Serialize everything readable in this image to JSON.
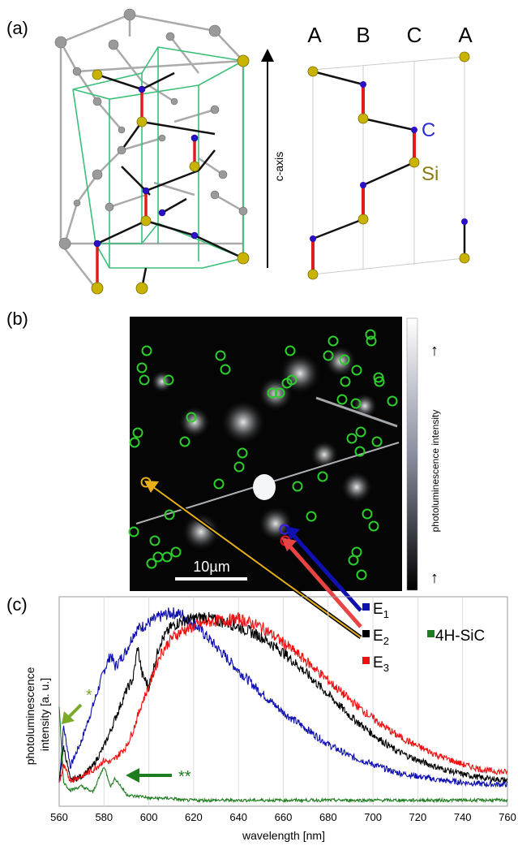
{
  "panels": {
    "a": {
      "label": "(a)",
      "axis_label": "c-axis",
      "stacking": [
        "A",
        "B",
        "C",
        "A"
      ],
      "atom_labels": {
        "carbon": "C",
        "silicon": "Si"
      }
    },
    "b": {
      "label": "(b)",
      "scale_bar": "10µm",
      "colorbar_label": "photoluminescence intensity",
      "arrow_up": "↑"
    },
    "c": {
      "label": "(c)"
    }
  },
  "colors": {
    "E1": "#1010b0",
    "E2": "#000000",
    "E3": "#ee1111",
    "4H-SiC": "#1e7d1e",
    "silicon_atom": "#c8b400",
    "carbon_atom": "#2a10c8",
    "cell_edge": "#3cbf7a",
    "marker_green": "#2ecc2e",
    "marker_orange": "#e8b018"
  },
  "chart_data": {
    "type": "line",
    "xlabel": "wavelength [nm]",
    "ylabel": "photoluminescence intensity [a. u.]",
    "xlim": [
      560,
      760
    ],
    "ylim": [
      0,
      1.05
    ],
    "x_ticks": [
      560,
      580,
      600,
      620,
      640,
      660,
      680,
      700,
      720,
      740,
      760
    ],
    "grid": "vertical",
    "legend": "right",
    "x": [
      560,
      562,
      565,
      570,
      575,
      580,
      583,
      585,
      590,
      593,
      595,
      597,
      600,
      605,
      610,
      615,
      620,
      625,
      630,
      635,
      640,
      650,
      660,
      670,
      680,
      690,
      700,
      710,
      720,
      730,
      740,
      750,
      760
    ],
    "series": [
      {
        "name": "E1",
        "values": [
          0.12,
          0.4,
          0.2,
          0.33,
          0.5,
          0.68,
          0.76,
          0.7,
          0.78,
          0.86,
          0.89,
          0.9,
          0.92,
          0.95,
          0.97,
          0.96,
          0.92,
          0.86,
          0.8,
          0.74,
          0.68,
          0.57,
          0.47,
          0.39,
          0.31,
          0.25,
          0.21,
          0.17,
          0.15,
          0.13,
          0.12,
          0.11,
          0.11
        ]
      },
      {
        "name": "E2",
        "values": [
          0.12,
          0.3,
          0.13,
          0.15,
          0.2,
          0.3,
          0.38,
          0.44,
          0.58,
          0.64,
          0.8,
          0.66,
          0.6,
          0.82,
          0.9,
          0.93,
          0.94,
          0.95,
          0.93,
          0.92,
          0.9,
          0.85,
          0.77,
          0.67,
          0.56,
          0.45,
          0.36,
          0.28,
          0.23,
          0.19,
          0.16,
          0.14,
          0.13
        ]
      },
      {
        "name": "E3",
        "values": [
          0.12,
          0.2,
          0.13,
          0.15,
          0.18,
          0.23,
          0.22,
          0.24,
          0.3,
          0.38,
          0.45,
          0.52,
          0.6,
          0.76,
          0.84,
          0.88,
          0.9,
          0.92,
          0.93,
          0.93,
          0.94,
          0.9,
          0.82,
          0.73,
          0.63,
          0.53,
          0.44,
          0.36,
          0.3,
          0.25,
          0.21,
          0.18,
          0.17
        ]
      },
      {
        "name": "4H-SiC",
        "values": [
          0.5,
          0.12,
          0.08,
          0.1,
          0.07,
          0.2,
          0.1,
          0.14,
          0.06,
          0.05,
          0.05,
          0.05,
          0.04,
          0.04,
          0.04,
          0.03,
          0.03,
          0.03,
          0.03,
          0.03,
          0.03,
          0.03,
          0.03,
          0.03,
          0.03,
          0.03,
          0.03,
          0.03,
          0.03,
          0.03,
          0.03,
          0.03,
          0.03
        ]
      }
    ],
    "annotations": [
      {
        "text": "*",
        "x": 561
      },
      {
        "text": "**",
        "x": 585
      }
    ]
  }
}
